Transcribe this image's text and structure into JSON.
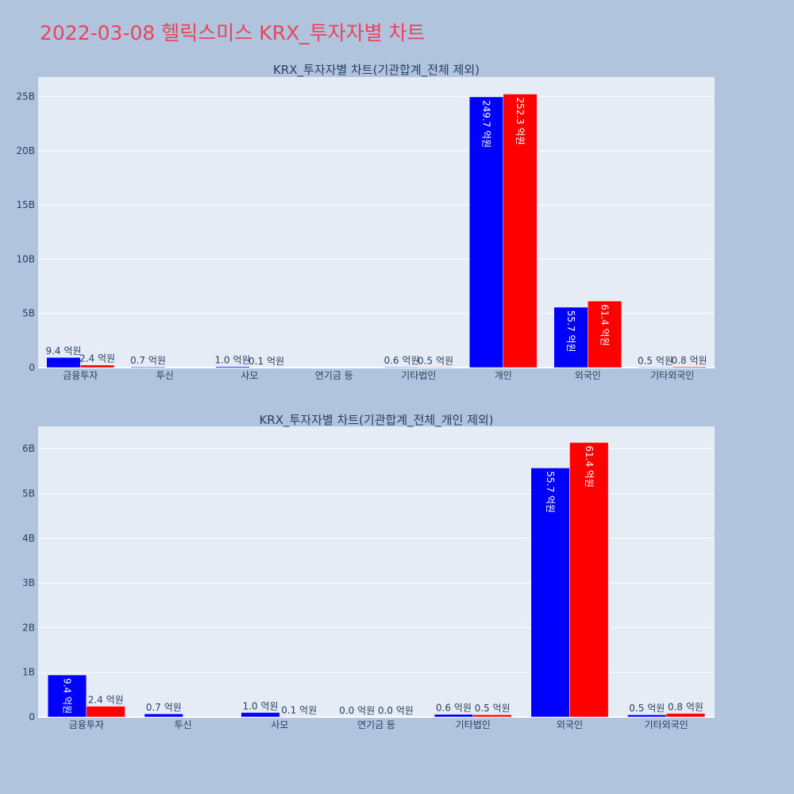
{
  "page": {
    "title": "2022-03-08 헬릭스미스 KRX_투자자별 차트"
  },
  "colors": {
    "series1": "#0000ff",
    "series2": "#ff0000",
    "plot_bg": "#e5ecf6",
    "page_bg": "#b0c4de",
    "title": "#e8445a"
  },
  "chart_data": [
    {
      "type": "bar",
      "title": "KRX_투자자별 차트(기관합계_전체 제외)",
      "xlabel": "",
      "ylabel": "",
      "categories": [
        "금융투자",
        "투신",
        "사모",
        "연기금 등",
        "기타법인",
        "개인",
        "외국인",
        "기타외국인"
      ],
      "ylim": [
        0,
        26800000000
      ],
      "yticks": [
        0,
        5000000000,
        10000000000,
        15000000000,
        20000000000,
        25000000000
      ],
      "ytick_labels": [
        "0",
        "5B",
        "10B",
        "15B",
        "20B",
        "25B"
      ],
      "grid": true,
      "series": [
        {
          "color": "#0000ff",
          "values": [
            940000000,
            70000000,
            100000000,
            null,
            60000000,
            24970000000,
            5570000000,
            50000000
          ],
          "labels": [
            "9.4 억원",
            "0.7 억원",
            "1.0 억원",
            "",
            "0.6 억원",
            "249.7 억원",
            "55.7 억원",
            "0.5 억원"
          ]
        },
        {
          "color": "#ff0000",
          "values": [
            240000000,
            null,
            10000000,
            null,
            50000000,
            25230000000,
            6140000000,
            80000000
          ],
          "labels": [
            "2.4 억원",
            "",
            "0.1 억원",
            "",
            "0.5 억원",
            "252.3 억원",
            "61.4 억원",
            "0.8 억원"
          ]
        }
      ]
    },
    {
      "type": "bar",
      "title": "KRX_투자자별 차트(기관합계_전체_개인 제외)",
      "xlabel": "",
      "ylabel": "",
      "categories": [
        "금융투자",
        "투신",
        "사모",
        "연기금 등",
        "기타법인",
        "외국인",
        "기타외국인"
      ],
      "ylim": [
        0,
        6500000000
      ],
      "yticks": [
        0,
        1000000000,
        2000000000,
        3000000000,
        4000000000,
        5000000000,
        6000000000
      ],
      "ytick_labels": [
        "0",
        "1B",
        "2B",
        "3B",
        "4B",
        "5B",
        "6B"
      ],
      "grid": true,
      "series": [
        {
          "color": "#0000ff",
          "values": [
            940000000,
            70000000,
            100000000,
            0,
            60000000,
            5570000000,
            50000000
          ],
          "labels": [
            "9.4 억원",
            "0.7 억원",
            "1.0 억원",
            "0.0 억원",
            "0.6 억원",
            "55.7 억원",
            "0.5 억원"
          ]
        },
        {
          "color": "#ff0000",
          "values": [
            240000000,
            null,
            10000000,
            0,
            50000000,
            6140000000,
            80000000
          ],
          "labels": [
            "2.4 억원",
            "",
            "0.1 억원",
            "0.0 억원",
            "0.5 억원",
            "61.4 억원",
            "0.8 억원"
          ]
        }
      ]
    }
  ]
}
